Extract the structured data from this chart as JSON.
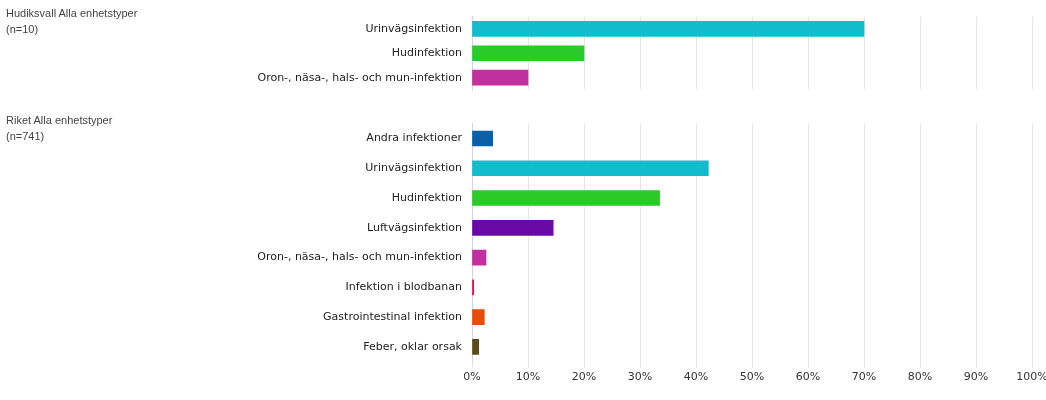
{
  "chart_data": [
    {
      "type": "bar",
      "orientation": "horizontal",
      "ylabel": "Hudiksvall Alla enhetstyper\n(n=10)",
      "categories": [
        "Urinvägsinfektion",
        "Hudinfektion",
        "Oron-, näsa-, hals- och mun-infektion"
      ],
      "values": [
        70,
        20,
        10
      ],
      "colors": [
        "#12bccc",
        "#2aca2a",
        "#c1309e"
      ],
      "xlim": [
        0,
        100
      ],
      "xticks": [
        {
          "value": 0,
          "label": null
        },
        {
          "value": 10,
          "label": null
        },
        {
          "value": 20,
          "label": null
        },
        {
          "value": 30,
          "label": null
        },
        {
          "value": 40,
          "label": null
        },
        {
          "value": 50,
          "label": null
        },
        {
          "value": 60,
          "label": null
        },
        {
          "value": 70,
          "label": null
        },
        {
          "value": 80,
          "label": null
        },
        {
          "value": 90,
          "label": null
        },
        {
          "value": 100,
          "label": null
        }
      ],
      "grid": "x",
      "tick_labels": "y"
    },
    {
      "type": "bar",
      "orientation": "horizontal",
      "ylabel": "Riket Alla enhetstyper\n(n=741)",
      "categories": [
        "Andra infektioner",
        "Urinvägsinfektion",
        "Hudinfektion",
        "Luftvägsinfektion",
        "Oron-, näsa-, hals- och mun-infektion",
        "Infektion i blodbanan",
        "Gastrointestinal infektion",
        "Feber, oklar orsak"
      ],
      "values": [
        3.7,
        42.2,
        33.5,
        14.5,
        2.5,
        0.3,
        2.2,
        1.2
      ],
      "colors": [
        "#0a5fa8",
        "#12bccc",
        "#2aca2a",
        "#6a0aa6",
        "#c1309e",
        "#e0105a",
        "#e84c0a",
        "#5f4a1a"
      ],
      "xlim": [
        0,
        100
      ],
      "xticks": [
        {
          "value": 0,
          "label": "0%"
        },
        {
          "value": 10,
          "label": "10%"
        },
        {
          "value": 20,
          "label": "20%"
        },
        {
          "value": 30,
          "label": "30%"
        },
        {
          "value": 40,
          "label": "40%"
        },
        {
          "value": 50,
          "label": "50%"
        },
        {
          "value": 60,
          "label": "60%"
        },
        {
          "value": 70,
          "label": "70%"
        },
        {
          "value": 80,
          "label": "80%"
        },
        {
          "value": 90,
          "label": "90%"
        },
        {
          "value": 100,
          "label": "100%"
        }
      ],
      "grid": "x"
    }
  ]
}
